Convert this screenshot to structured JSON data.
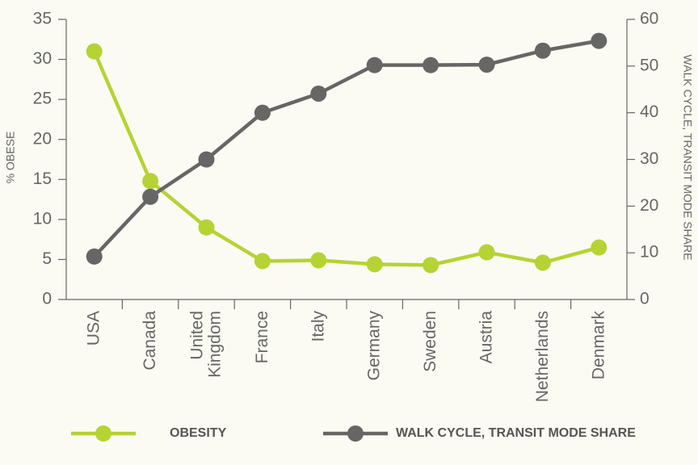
{
  "chart_data": {
    "type": "line",
    "categories": [
      "USA",
      "Canada",
      "United Kingdom",
      "France",
      "Italy",
      "Germany",
      "Sweden",
      "Austria",
      "Netherlands",
      "Denmark"
    ],
    "y_label": "% OBESE",
    "y2_label": "WALK CYCLE, TRANSIT MODE SHARE",
    "ylim": [
      0,
      35
    ],
    "yticks": [
      0,
      5,
      10,
      15,
      20,
      25,
      30,
      35
    ],
    "y2lim": [
      0,
      60
    ],
    "y2ticks": [
      0,
      10,
      20,
      30,
      40,
      50,
      60
    ],
    "series": [
      {
        "name": "OBESITY",
        "color": "#b5d334",
        "values": [
          31.0,
          14.8,
          9.0,
          4.8,
          4.9,
          4.4,
          4.3,
          5.9,
          4.6,
          6.5
        ]
      },
      {
        "name": "WALK CYCLE, TRANSIT MODE SHARE",
        "color": "#666666",
        "axis": "y2",
        "values": [
          9.2,
          22,
          30,
          40,
          44.1,
          50.2,
          50.2,
          50.3,
          53.3,
          55.4
        ]
      }
    ]
  }
}
